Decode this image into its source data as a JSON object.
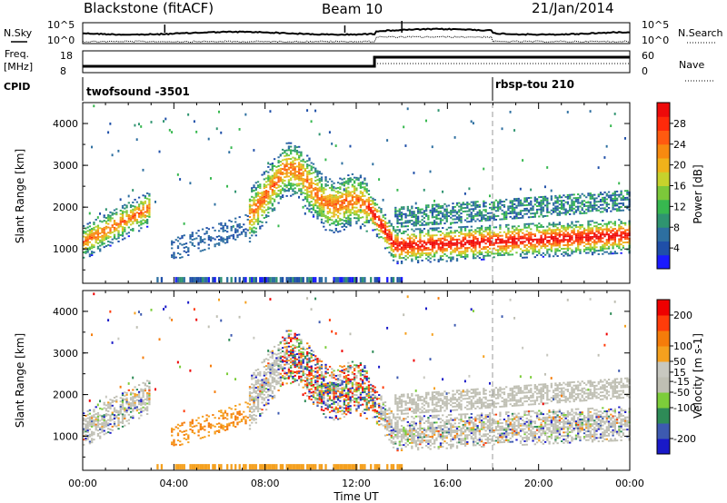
{
  "header": {
    "station": "Blackstone (fitACF)",
    "beam": "Beam 10",
    "date": "21/Jan/2014"
  },
  "top_panel": {
    "left_label": "N.Sky",
    "right_label": "N.Search",
    "left_ticks": [
      "10^5",
      "10^0"
    ],
    "right_ticks": [
      "10^5",
      "10^0"
    ]
  },
  "freq_panel": {
    "left_label_1": "Freq.",
    "left_label_2": "[MHz]",
    "right_label": "Nave",
    "left_ticks": [
      "18",
      "8"
    ],
    "right_ticks": [
      "60",
      "0"
    ]
  },
  "cpid": {
    "label": "CPID",
    "segments": [
      {
        "name": "twofsound -3501",
        "start_hour": 0,
        "end_hour": 18
      },
      {
        "name": "rbsp-tou 210",
        "start_hour": 18,
        "end_hour": 24
      }
    ]
  },
  "chart_data": [
    {
      "type": "heatmap",
      "title": "",
      "quantity": "Power",
      "xlabel": "Time UT",
      "ylabel": "Slant Range [km]",
      "xlim_hours": [
        0,
        24
      ],
      "ylim": [
        180,
        4500
      ],
      "x_ticks": [
        "00:00",
        "04:00",
        "08:00",
        "12:00",
        "16:00",
        "20:00",
        "00:00"
      ],
      "y_ticks": [
        1000,
        2000,
        3000,
        4000
      ],
      "colorbar": {
        "label": "Power [dB]",
        "ticks": [
          4,
          8,
          12,
          16,
          20,
          24,
          28
        ],
        "range": [
          0,
          32
        ],
        "colors": [
          "#1a1aff",
          "#1f4fa8",
          "#2d6fa0",
          "#2f9470",
          "#37b84f",
          "#7cc83a",
          "#c7d22c",
          "#f0b21a",
          "#f78a10",
          "#ff5a10",
          "#ff2a0a",
          "#ee0a0a"
        ]
      },
      "features": [
        {
          "band": "ionospheric scatter",
          "start_hour": 0,
          "end_hour": 2.9,
          "range_km": [
            1050,
            2000
          ]
        },
        {
          "band": "ionospheric scatter",
          "start_hour": 3.8,
          "end_hour": 7.2,
          "range_km": [
            900,
            1700
          ]
        },
        {
          "band": "ionospheric scatter",
          "start_hour": 8.7,
          "end_hour": 12.5,
          "range_km": [
            1700,
            3300
          ]
        },
        {
          "band": "ionospheric scatter",
          "start_hour": 12.6,
          "end_hour": 24,
          "range_km": [
            800,
            1700
          ]
        },
        {
          "band": "ground scatter",
          "start_hour": 3,
          "end_hour": 14,
          "range_km": [
            200,
            350
          ]
        }
      ]
    },
    {
      "type": "heatmap",
      "title": "",
      "quantity": "Velocity",
      "xlabel": "Time UT",
      "ylabel": "Slant Range [km]",
      "xlim_hours": [
        0,
        24
      ],
      "ylim": [
        180,
        4500
      ],
      "x_ticks": [
        "00:00",
        "04:00",
        "08:00",
        "12:00",
        "16:00",
        "20:00",
        "00:00"
      ],
      "y_ticks": [
        1000,
        2000,
        3000,
        4000
      ],
      "colorbar": {
        "label": "Velocity [m s-1]",
        "ticks": [
          200,
          100,
          50,
          15,
          -15,
          -50,
          -100,
          -200
        ],
        "range": [
          -250,
          250
        ],
        "colors": [
          "#1919c8",
          "#3d5ab0",
          "#2e8b57",
          "#7ccd3a",
          "#bfbfb3",
          "#c8c8c0",
          "#f5a01e",
          "#f57c0a",
          "#ff3c0a",
          "#ee0000"
        ]
      }
    }
  ]
}
